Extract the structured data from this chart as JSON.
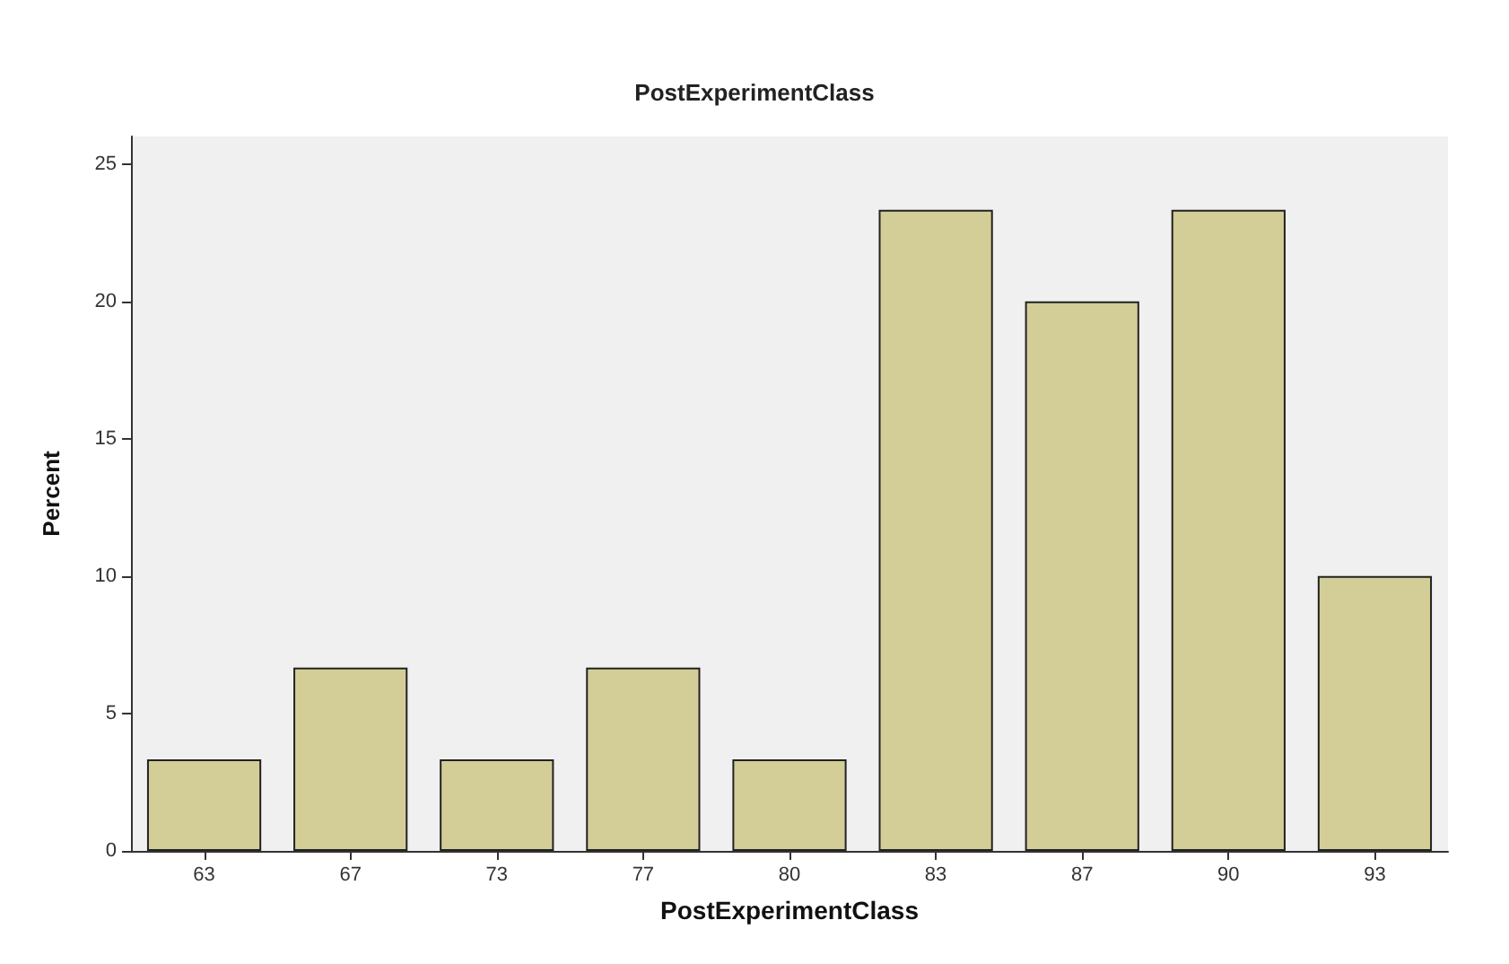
{
  "chart_data": {
    "type": "bar",
    "title": "PostExperimentClass",
    "xlabel": "PostExperimentClass",
    "ylabel": "Percent",
    "categories": [
      "63",
      "67",
      "73",
      "77",
      "80",
      "83",
      "87",
      "90",
      "93"
    ],
    "values": [
      3.33,
      6.67,
      3.33,
      6.67,
      3.33,
      23.33,
      20,
      23.33,
      10
    ],
    "color": "#d3ce97",
    "ylim": [
      0,
      26
    ],
    "yticks": [
      0,
      5,
      10,
      15,
      20,
      25
    ]
  }
}
